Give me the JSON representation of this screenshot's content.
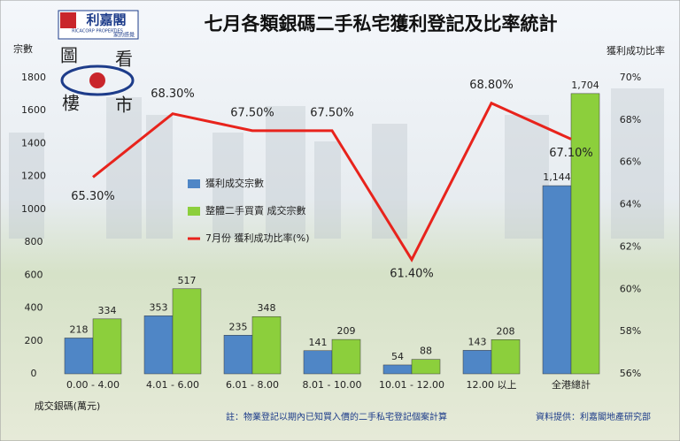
{
  "logo": {
    "brand": "利嘉閣",
    "brand_en": "RICACORP PROPERTIES",
    "slogan": "家的感覺",
    "tagline": [
      "圖",
      "看",
      "樓",
      "市"
    ]
  },
  "chart_data": {
    "type": "bar",
    "title": "七月各類銀碼二手私宅獲利登記及比率統計",
    "y_label": "宗數",
    "y2_label": "獲利成功比率",
    "x_label": "成交銀碼(萬元)",
    "footnote": "註：物業登記以期內已知買入價的二手私宅登記個案計算",
    "source": "資料提供：利嘉閣地產研究部",
    "categories": [
      "0.00 - 4.00",
      "4.01 - 6.00",
      "6.01 - 8.00",
      "8.01 - 10.00",
      "10.01 - 12.00",
      "12.00 以上",
      "全港總計"
    ],
    "series": [
      {
        "name": "獲利成交宗數",
        "type": "bar",
        "color": "#4f86c6",
        "values": [
          218,
          353,
          235,
          141,
          54,
          143,
          1144
        ],
        "value_labels": [
          "218",
          "353",
          "235",
          "141",
          "54",
          "143",
          "1,144"
        ]
      },
      {
        "name": "整體二手買賣 成交宗數",
        "type": "bar",
        "color": "#8ccf3c",
        "values": [
          334,
          517,
          348,
          209,
          88,
          208,
          1704
        ],
        "value_labels": [
          "334",
          "517",
          "348",
          "209",
          "88",
          "208",
          "1,704"
        ]
      },
      {
        "name": "7月份 獲利成功比率(%)",
        "type": "line",
        "axis": "y2",
        "color": "#e8231c",
        "values": [
          65.3,
          68.3,
          67.5,
          67.5,
          61.4,
          68.8,
          67.1
        ],
        "value_labels": [
          "65.30%",
          "68.30%",
          "67.50%",
          "67.50%",
          "61.40%",
          "68.80%",
          "67.10%"
        ]
      }
    ],
    "ylim": [
      0,
      1800
    ],
    "yticks": [
      0,
      200,
      400,
      600,
      800,
      1000,
      1200,
      1400,
      1600,
      1800
    ],
    "y2lim": [
      56,
      70
    ],
    "y2ticks": [
      {
        "value": 56,
        "label": "56%"
      },
      {
        "value": 58,
        "label": "58%"
      },
      {
        "value": 60,
        "label": "60%"
      },
      {
        "value": 62,
        "label": "62%"
      },
      {
        "value": 64,
        "label": "64%"
      },
      {
        "value": 66,
        "label": "66%"
      },
      {
        "value": 68,
        "label": "68%"
      },
      {
        "value": 70,
        "label": "70%"
      }
    ],
    "grid": false
  }
}
